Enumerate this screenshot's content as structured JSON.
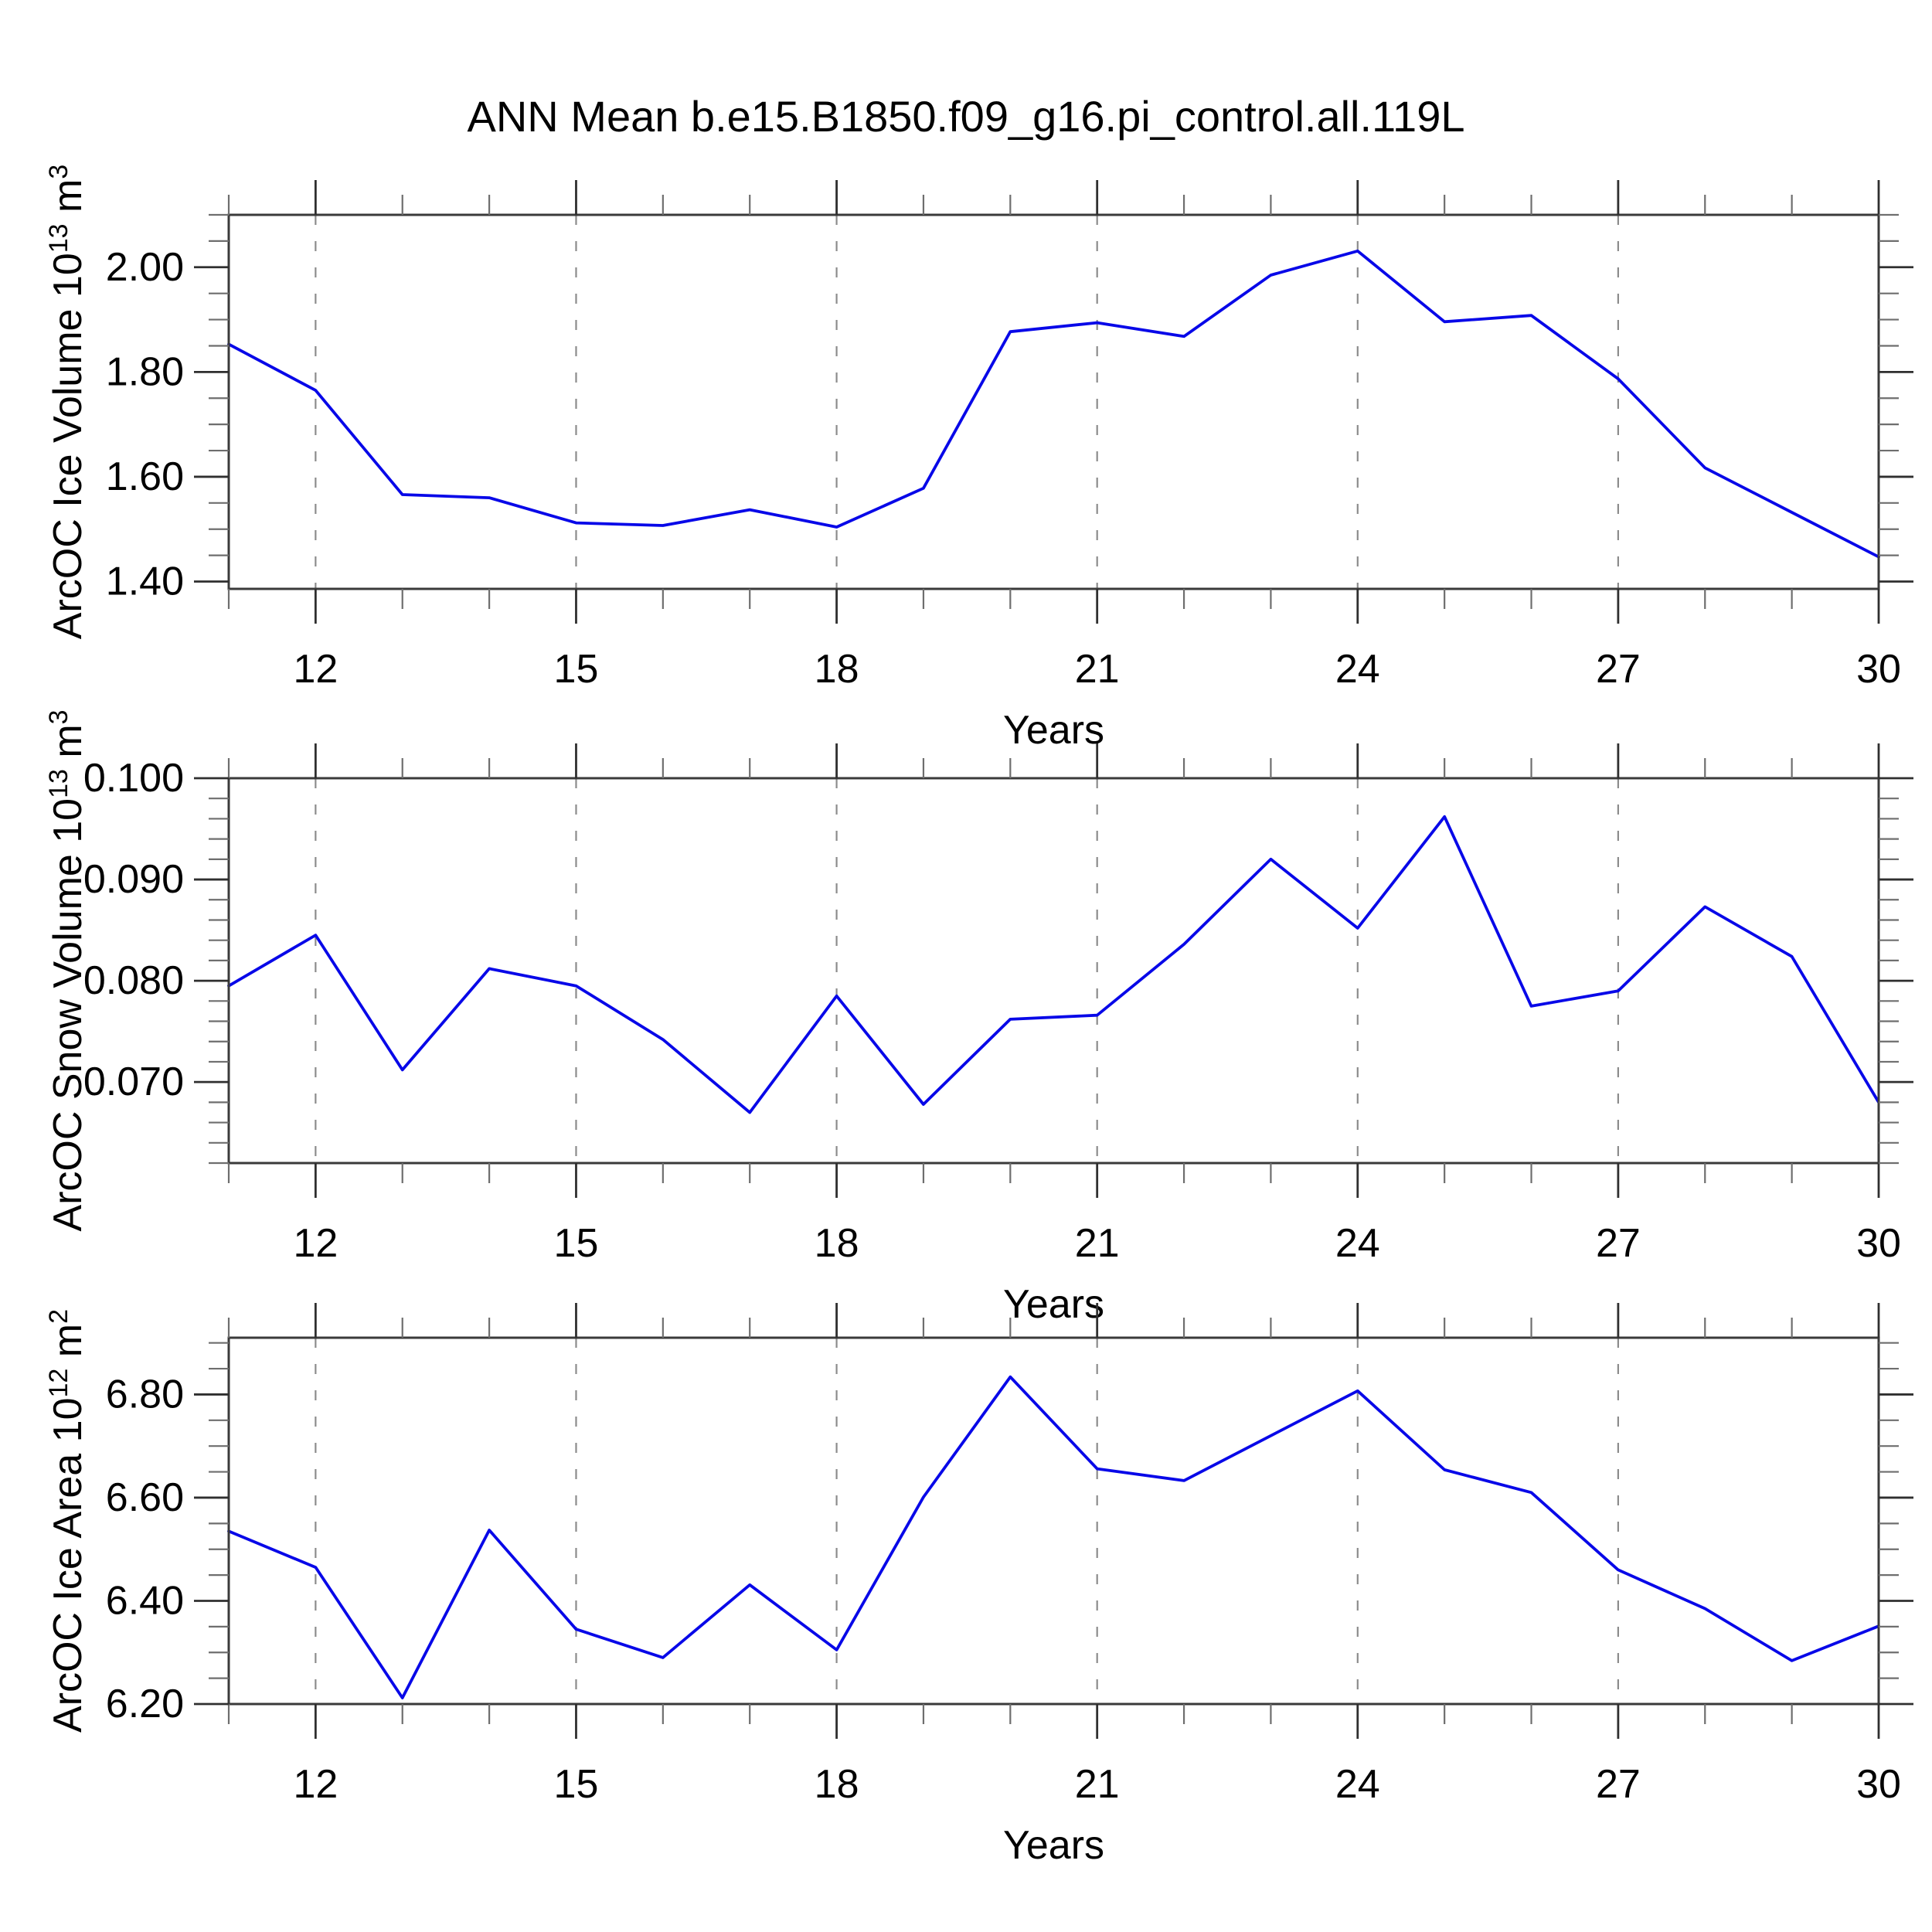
{
  "figure": {
    "title": "ANN Mean b.e15.B1850.f09_g16.pi_control.all.119L",
    "background_color": "#ffffff",
    "line_color": "#0808e8",
    "frame_color": "#3a3a3a",
    "major_tick_color": "#2f2f2f",
    "minor_tick_color": "#6e6e6e",
    "grid_color": "#8c8c8c",
    "text_color": "#000000"
  },
  "chart_data": [
    {
      "type": "line",
      "ylabel_text": "ArcOC Ice Volume 10^13 m^3",
      "ylabel_parts": [
        {
          "t": "ArcOC Ice Volume 10"
        },
        {
          "t": "13",
          "sup": true
        },
        {
          "t": " m"
        },
        {
          "t": "3",
          "sup": true
        }
      ],
      "xlabel": "Years",
      "x": [
        11,
        12,
        13,
        14,
        15,
        16,
        17,
        18,
        19,
        20,
        21,
        22,
        23,
        24,
        25,
        26,
        27,
        28,
        29,
        30
      ],
      "values": [
        1.853,
        1.765,
        1.566,
        1.56,
        1.512,
        1.507,
        1.537,
        1.504,
        1.578,
        1.877,
        1.894,
        1.868,
        1.985,
        2.031,
        1.896,
        1.908,
        1.787,
        1.617,
        1.532,
        1.447
      ],
      "xlim": [
        11,
        30
      ],
      "ylim": [
        1.386,
        2.1
      ],
      "xticks_major": [
        12,
        15,
        18,
        21,
        24,
        27,
        30
      ],
      "xtick_labels": [
        "12",
        "15",
        "18",
        "21",
        "24",
        "27",
        "30"
      ],
      "xtick_minor_step": 1,
      "grid_x": [
        12,
        15,
        18,
        21,
        24,
        27
      ],
      "yticks_major": [
        1.4,
        1.6,
        1.8,
        2.0
      ],
      "ytick_labels": [
        "1.40",
        "1.60",
        "1.80",
        "2.00"
      ],
      "ytick_minor_step": 0.05,
      "grid": "vertical-dashed",
      "legend": null
    },
    {
      "type": "line",
      "ylabel_text": "ArcOC Snow Volume 10^13 m^3",
      "ylabel_parts": [
        {
          "t": "ArcOC Snow Volume 10"
        },
        {
          "t": "13",
          "sup": true
        },
        {
          "t": " m"
        },
        {
          "t": "3",
          "sup": true
        }
      ],
      "xlabel": "Years",
      "x": [
        11,
        12,
        13,
        14,
        15,
        16,
        17,
        18,
        19,
        20,
        21,
        22,
        23,
        24,
        25,
        26,
        27,
        28,
        29,
        30
      ],
      "values": [
        0.0795,
        0.0845,
        0.0712,
        0.0812,
        0.0795,
        0.0742,
        0.067,
        0.0785,
        0.0678,
        0.0762,
        0.0766,
        0.0836,
        0.092,
        0.0852,
        0.0962,
        0.0775,
        0.079,
        0.0873,
        0.0824,
        0.068
      ],
      "xlim": [
        11,
        30
      ],
      "ylim": [
        0.062,
        0.1
      ],
      "xticks_major": [
        12,
        15,
        18,
        21,
        24,
        27,
        30
      ],
      "xtick_labels": [
        "12",
        "15",
        "18",
        "21",
        "24",
        "27",
        "30"
      ],
      "xtick_minor_step": 1,
      "grid_x": [
        12,
        15,
        18,
        21,
        24,
        27
      ],
      "yticks_major": [
        0.07,
        0.08,
        0.09,
        0.1
      ],
      "ytick_labels": [
        "0.070",
        "0.080",
        "0.090",
        "0.100"
      ],
      "ytick_minor_step": 0.002,
      "grid": "vertical-dashed",
      "legend": null
    },
    {
      "type": "line",
      "ylabel_text": "ArcOC Ice Area 10^12 m^2",
      "ylabel_parts": [
        {
          "t": "ArcOC Ice Area 10"
        },
        {
          "t": "12",
          "sup": true
        },
        {
          "t": " m"
        },
        {
          "t": "2",
          "sup": true
        }
      ],
      "xlabel": "Years",
      "x": [
        11,
        12,
        13,
        14,
        15,
        16,
        17,
        18,
        19,
        20,
        21,
        22,
        23,
        24,
        25,
        26,
        27,
        28,
        29,
        30
      ],
      "values": [
        6.535,
        6.465,
        6.212,
        6.537,
        6.345,
        6.29,
        6.431,
        6.305,
        6.601,
        6.834,
        6.656,
        6.633,
        6.72,
        6.807,
        6.654,
        6.61,
        6.46,
        6.385,
        6.284,
        6.351
      ],
      "xlim": [
        11,
        30
      ],
      "ylim": [
        6.2,
        6.91
      ],
      "xticks_major": [
        12,
        15,
        18,
        21,
        24,
        27,
        30
      ],
      "xtick_labels": [
        "12",
        "15",
        "18",
        "21",
        "24",
        "27",
        "30"
      ],
      "xtick_minor_step": 1,
      "grid_x": [
        12,
        15,
        18,
        21,
        24,
        27
      ],
      "yticks_major": [
        6.2,
        6.4,
        6.6,
        6.8
      ],
      "ytick_labels": [
        "6.20",
        "6.40",
        "6.60",
        "6.80"
      ],
      "ytick_minor_step": 0.05,
      "grid": "vertical-dashed",
      "legend": null
    }
  ]
}
